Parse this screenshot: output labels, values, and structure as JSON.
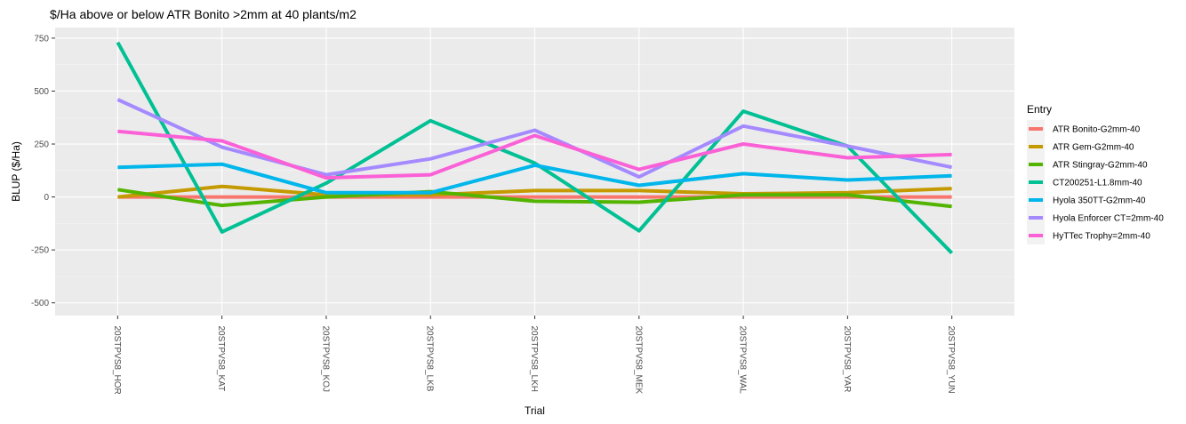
{
  "chart_data": {
    "type": "line",
    "title": "$/Ha above or below ATR Bonito >2mm at 40 plants/m2",
    "xlabel": "Trial",
    "ylabel": "BLUP ($/Ha)",
    "categories": [
      "20STPVS8_HOR",
      "20STPVS8_KAT",
      "20STPVS8_KOJ",
      "20STPVS8_LKB",
      "20STPVS8_LKH",
      "20STPVS8_MEK",
      "20STPVS8_WAL",
      "20STPVS8_YAR",
      "20STPVS8_YUN"
    ],
    "ylim": [
      -560,
      800
    ],
    "yticks": [
      -500,
      -250,
      0,
      250,
      500,
      750
    ],
    "ytick_labels": [
      "-500",
      "-250",
      "0",
      "250",
      "500",
      "750"
    ],
    "grid": true,
    "legend": {
      "title": "Entry",
      "position": "right"
    },
    "series": [
      {
        "name": "ATR Bonito-G2mm-40",
        "color": "#F8766D",
        "values": [
          0,
          0,
          0,
          0,
          0,
          0,
          0,
          0,
          0
        ]
      },
      {
        "name": "ATR Gem-G2mm-40",
        "color": "#C49A00",
        "values": [
          0,
          50,
          10,
          10,
          30,
          30,
          15,
          20,
          40
        ]
      },
      {
        "name": "ATR Stingray-G2mm-40",
        "color": "#53B400",
        "values": [
          35,
          -40,
          0,
          25,
          -20,
          -25,
          10,
          10,
          -45
        ]
      },
      {
        "name": "CT200251-L1.8mm-40",
        "color": "#00C094",
        "values": [
          730,
          -165,
          65,
          360,
          160,
          -160,
          405,
          240,
          -265
        ]
      },
      {
        "name": "Hyola 350TT-G2mm-40",
        "color": "#00B6EB",
        "values": [
          140,
          155,
          20,
          20,
          150,
          55,
          110,
          80,
          100
        ]
      },
      {
        "name": "Hyola Enforcer CT=2mm-40",
        "color": "#A58AFF",
        "values": [
          460,
          235,
          105,
          180,
          315,
          95,
          335,
          240,
          140
        ]
      },
      {
        "name": "HyTTec Trophy=2mm-40",
        "color": "#FB61D7",
        "values": [
          310,
          265,
          90,
          105,
          290,
          130,
          250,
          185,
          200
        ]
      }
    ]
  }
}
